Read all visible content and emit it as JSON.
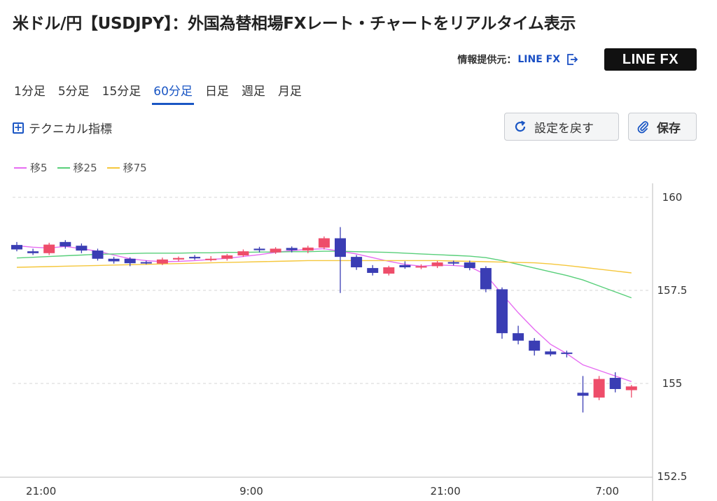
{
  "header": {
    "title": "米ドル/円【USDJPY】：外国為替相場FXレート・チャートをリアルタイム表示",
    "provider_label": "情報提供元：",
    "provider_link": "LINE FX",
    "logo_text": "LINE FX"
  },
  "tabs": [
    {
      "label": "1分足",
      "active": false
    },
    {
      "label": "5分足",
      "active": false
    },
    {
      "label": "15分足",
      "active": false
    },
    {
      "label": "60分足",
      "active": true
    },
    {
      "label": "日足",
      "active": false
    },
    {
      "label": "週足",
      "active": false
    },
    {
      "label": "月足",
      "active": false
    }
  ],
  "toolbar": {
    "technical_label": "テクニカル指標",
    "reset_label": "設定を戻す",
    "save_label": "保存"
  },
  "colors": {
    "up": "#ee4d6a",
    "down": "#3a3db4",
    "accent": "#1a56c4",
    "ma5": "#e66cf2",
    "ma25": "#58cf7a",
    "ma75": "#f5c73c"
  },
  "chart_data": {
    "type": "candlestick",
    "title": "",
    "legend_placement": "top-left",
    "grid": true,
    "ylim": [
      152.5,
      160.2
    ],
    "y_ticks": [
      "160",
      "157.5",
      "155",
      "152.5"
    ],
    "x_tick_labels": [
      "21:00",
      "9:00",
      "21:00",
      "7:00"
    ],
    "x_tick_index": [
      1.5,
      14.5,
      26.5,
      36.5
    ],
    "legend": [
      "移5",
      "移25",
      "移75"
    ],
    "candles": [
      {
        "o": 158.72,
        "c": 158.6,
        "h": 158.8,
        "l": 158.55
      },
      {
        "o": 158.55,
        "c": 158.5,
        "h": 158.62,
        "l": 158.45
      },
      {
        "o": 158.5,
        "c": 158.73,
        "h": 158.78,
        "l": 158.45
      },
      {
        "o": 158.8,
        "c": 158.68,
        "h": 158.85,
        "l": 158.62
      },
      {
        "o": 158.7,
        "c": 158.57,
        "h": 158.76,
        "l": 158.5
      },
      {
        "o": 158.57,
        "c": 158.35,
        "h": 158.62,
        "l": 158.3
      },
      {
        "o": 158.35,
        "c": 158.28,
        "h": 158.4,
        "l": 158.22
      },
      {
        "o": 158.35,
        "c": 158.23,
        "h": 158.39,
        "l": 158.15
      },
      {
        "o": 158.26,
        "c": 158.24,
        "h": 158.3,
        "l": 158.2
      },
      {
        "o": 158.22,
        "c": 158.33,
        "h": 158.38,
        "l": 158.18
      },
      {
        "o": 158.33,
        "c": 158.37,
        "h": 158.41,
        "l": 158.28
      },
      {
        "o": 158.4,
        "c": 158.36,
        "h": 158.45,
        "l": 158.32
      },
      {
        "o": 158.35,
        "c": 158.35,
        "h": 158.42,
        "l": 158.28
      },
      {
        "o": 158.35,
        "c": 158.44,
        "h": 158.48,
        "l": 158.3
      },
      {
        "o": 158.44,
        "c": 158.55,
        "h": 158.6,
        "l": 158.4
      },
      {
        "o": 158.62,
        "c": 158.58,
        "h": 158.67,
        "l": 158.52
      },
      {
        "o": 158.52,
        "c": 158.62,
        "h": 158.66,
        "l": 158.48
      },
      {
        "o": 158.64,
        "c": 158.58,
        "h": 158.68,
        "l": 158.52
      },
      {
        "o": 158.57,
        "c": 158.65,
        "h": 158.7,
        "l": 158.5
      },
      {
        "o": 158.65,
        "c": 158.9,
        "h": 158.95,
        "l": 158.6
      },
      {
        "o": 158.9,
        "c": 158.4,
        "h": 159.2,
        "l": 157.43
      },
      {
        "o": 158.4,
        "c": 158.12,
        "h": 158.45,
        "l": 158.05
      },
      {
        "o": 158.1,
        "c": 157.97,
        "h": 158.18,
        "l": 157.9
      },
      {
        "o": 157.95,
        "c": 158.12,
        "h": 158.16,
        "l": 157.9
      },
      {
        "o": 158.18,
        "c": 158.12,
        "h": 158.28,
        "l": 158.08
      },
      {
        "o": 158.12,
        "c": 158.15,
        "h": 158.2,
        "l": 158.07
      },
      {
        "o": 158.15,
        "c": 158.25,
        "h": 158.29,
        "l": 158.1
      },
      {
        "o": 158.26,
        "c": 158.22,
        "h": 158.3,
        "l": 158.17
      },
      {
        "o": 158.25,
        "c": 158.1,
        "h": 158.3,
        "l": 158.04
      },
      {
        "o": 158.1,
        "c": 157.53,
        "h": 158.15,
        "l": 157.45
      },
      {
        "o": 157.53,
        "c": 156.35,
        "h": 157.58,
        "l": 156.2
      },
      {
        "o": 156.35,
        "c": 156.15,
        "h": 156.55,
        "l": 156.05
      },
      {
        "o": 156.15,
        "c": 155.88,
        "h": 156.22,
        "l": 155.75
      },
      {
        "o": 155.86,
        "c": 155.78,
        "h": 155.93,
        "l": 155.73
      },
      {
        "o": 155.83,
        "c": 155.8,
        "h": 155.88,
        "l": 155.7
      },
      {
        "o": 154.75,
        "c": 154.67,
        "h": 155.2,
        "l": 154.22
      },
      {
        "o": 154.62,
        "c": 155.12,
        "h": 155.2,
        "l": 154.55
      },
      {
        "o": 155.15,
        "c": 154.85,
        "h": 155.3,
        "l": 154.76
      },
      {
        "o": 154.82,
        "c": 154.92,
        "h": 154.96,
        "l": 154.62
      }
    ],
    "series": [
      {
        "name": "移5",
        "values": [
          158.7,
          158.66,
          158.64,
          158.68,
          158.62,
          158.55,
          158.45,
          158.35,
          158.3,
          158.27,
          158.28,
          158.3,
          158.33,
          158.36,
          158.41,
          158.46,
          158.52,
          158.57,
          158.6,
          158.62,
          158.55,
          158.48,
          158.38,
          158.28,
          158.2,
          158.15,
          158.18,
          158.17,
          158.14,
          157.92,
          157.4,
          156.9,
          156.45,
          156.05,
          155.8,
          155.5,
          155.35,
          155.2,
          155.05
        ]
      },
      {
        "name": "移25",
        "values": [
          158.37,
          158.39,
          158.41,
          158.43,
          158.45,
          158.47,
          158.48,
          158.49,
          158.5,
          158.5,
          158.5,
          158.51,
          158.51,
          158.52,
          158.52,
          158.53,
          158.53,
          158.54,
          158.54,
          158.55,
          158.55,
          158.54,
          158.53,
          158.52,
          158.5,
          158.48,
          158.46,
          158.44,
          158.42,
          158.38,
          158.3,
          158.2,
          158.1,
          158.0,
          157.9,
          157.78,
          157.62,
          157.46,
          157.3
        ]
      },
      {
        "name": "移75",
        "values": [
          158.12,
          158.13,
          158.14,
          158.15,
          158.16,
          158.17,
          158.18,
          158.19,
          158.2,
          158.21,
          158.22,
          158.23,
          158.24,
          158.25,
          158.26,
          158.27,
          158.28,
          158.29,
          158.3,
          158.3,
          158.3,
          158.3,
          158.3,
          158.3,
          158.3,
          158.3,
          158.3,
          158.29,
          158.28,
          158.27,
          158.26,
          158.25,
          158.24,
          158.21,
          158.17,
          158.12,
          158.07,
          158.02,
          157.97
        ]
      }
    ]
  }
}
